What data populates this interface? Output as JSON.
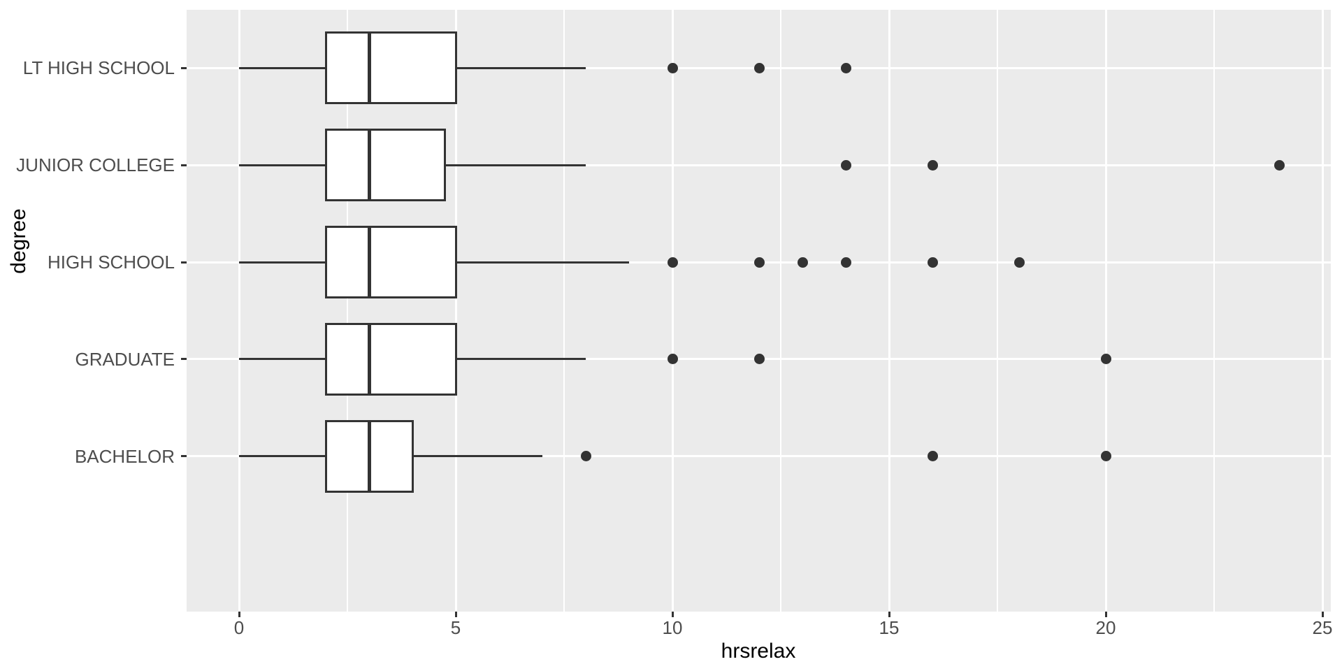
{
  "chart_data": {
    "type": "boxplot",
    "orientation": "horizontal",
    "title": "",
    "xlabel": "hrsrelax",
    "ylabel": "degree",
    "x_ticks": [
      0,
      5,
      10,
      15,
      20,
      25
    ],
    "x_minor_ticks": [
      2.5,
      7.5,
      12.5,
      17.5,
      22.5
    ],
    "xlim": [
      -1.21,
      25.19
    ],
    "grid": true,
    "legend_position": "none",
    "categories_top_to_bottom": [
      "LT HIGH SCHOOL",
      "JUNIOR COLLEGE",
      "HIGH SCHOOL",
      "GRADUATE",
      "BACHELOR"
    ],
    "series": [
      {
        "category": "LT HIGH SCHOOL",
        "whisker_min": 0,
        "q1": 2,
        "median": 3,
        "q3": 5,
        "whisker_max": 8,
        "outliers": [
          10,
          12,
          14
        ]
      },
      {
        "category": "JUNIOR COLLEGE",
        "whisker_min": 0,
        "q1": 2,
        "median": 3,
        "q3": 4.75,
        "whisker_max": 8,
        "outliers": [
          14,
          16,
          24
        ]
      },
      {
        "category": "HIGH SCHOOL",
        "whisker_min": 0,
        "q1": 2,
        "median": 3,
        "q3": 5,
        "whisker_max": 9,
        "outliers": [
          10,
          12,
          13,
          14,
          16,
          18
        ]
      },
      {
        "category": "GRADUATE",
        "whisker_min": 0,
        "q1": 2,
        "median": 3,
        "q3": 5,
        "whisker_max": 8,
        "outliers": [
          10,
          12,
          20
        ]
      },
      {
        "category": "BACHELOR",
        "whisker_min": 0,
        "q1": 2,
        "median": 3,
        "q3": 4,
        "whisker_max": 7,
        "outliers": [
          8,
          16,
          20
        ]
      }
    ],
    "colors": {
      "panel_background": "#EBEBEB",
      "gridline": "#FFFFFF",
      "box_fill": "#FFFFFF",
      "box_line": "#333333",
      "outlier": "#333333",
      "axis_text": "#4D4D4D",
      "axis_title": "#000000",
      "tick_mark": "#333333"
    }
  }
}
